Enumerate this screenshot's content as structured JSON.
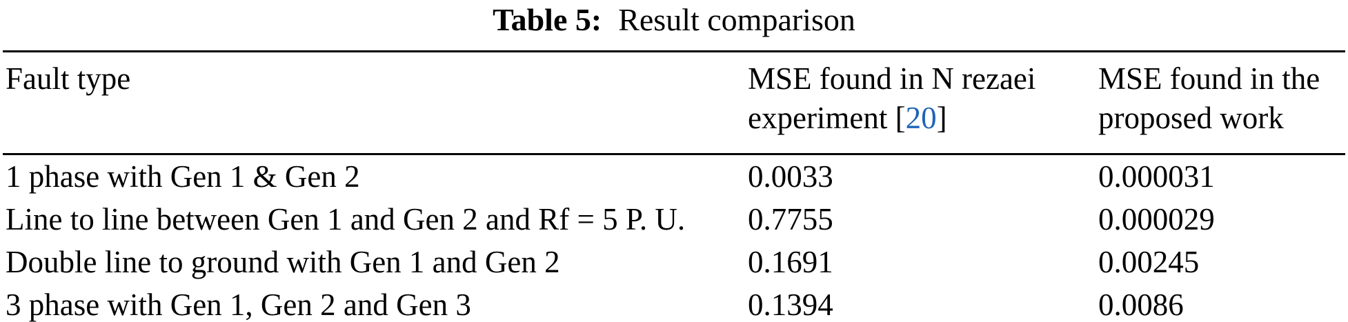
{
  "caption": {
    "label": "Table 5:",
    "text": "Result comparison"
  },
  "table": {
    "headers": {
      "fault_type": "Fault type",
      "mse_rezaei_line1": "MSE found in N rezaei",
      "mse_rezaei_line2_prefix": "experiment [",
      "mse_rezaei_citation": "20",
      "mse_rezaei_line2_suffix": "]",
      "mse_proposed_line1": "MSE found in the",
      "mse_proposed_line2": "proposed work"
    },
    "rows": [
      {
        "fault_type": "1 phase with Gen 1 & Gen 2",
        "mse_rezaei": "0.0033",
        "mse_proposed": "0.000031"
      },
      {
        "fault_type": "Line to line between Gen 1 and Gen 2 and Rf = 5 P. U.",
        "mse_rezaei": "0.7755",
        "mse_proposed": "0.000029"
      },
      {
        "fault_type": "Double line to ground with Gen 1 and Gen 2",
        "mse_rezaei": "0.1691",
        "mse_proposed": "0.00245"
      },
      {
        "fault_type": "3 phase with Gen 1, Gen 2 and Gen 3",
        "mse_rezaei": "0.1394",
        "mse_proposed": "0.0086"
      }
    ]
  },
  "colors": {
    "citation_link": "#1c64b8",
    "text": "#000000",
    "background": "#ffffff"
  }
}
